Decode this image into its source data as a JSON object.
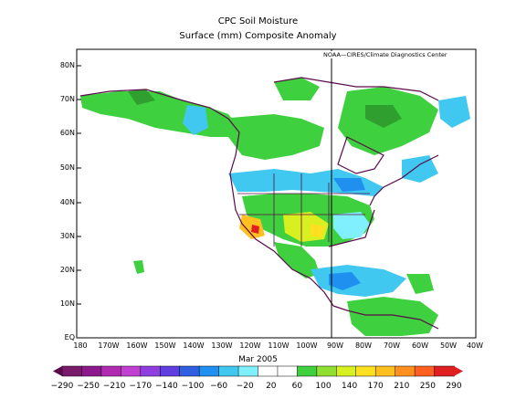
{
  "title": "CPC Soil Moisture",
  "subtitle": "Surface  (mm) Composite Anomaly",
  "credit": "NOAA—CIRES/Climate Diagnostics Center",
  "date": "Mar 2005",
  "lat_labels": [
    "80N",
    "70N",
    "60N",
    "50N",
    "40N",
    "30N",
    "20N",
    "10N",
    "EQ"
  ],
  "lon_labels": [
    "180",
    "170W",
    "160W",
    "150W",
    "140W",
    "130W",
    "120W",
    "110W",
    "100W",
    "90W",
    "80W",
    "70W",
    "60W",
    "50W",
    "40W"
  ],
  "colorbar": {
    "labels": [
      "−290",
      "−250",
      "−210",
      "−170",
      "−140",
      "−100",
      "−60",
      "−20",
      "20",
      "60",
      "100",
      "140",
      "170",
      "210",
      "250",
      "290"
    ],
    "colors": [
      "#7a1a6a",
      "#8d1a8d",
      "#b12bb1",
      "#c040d0",
      "#8f3fe0",
      "#5f3fe0",
      "#2f5fe0",
      "#1f8ff0",
      "#40c8f0",
      "#80f0ff",
      "#ffffff",
      "#ffffff",
      "#3fd040",
      "#8fe030",
      "#d8f020",
      "#ffe020",
      "#ffc020",
      "#ff9020",
      "#ff6020",
      "#e02020"
    ]
  }
}
